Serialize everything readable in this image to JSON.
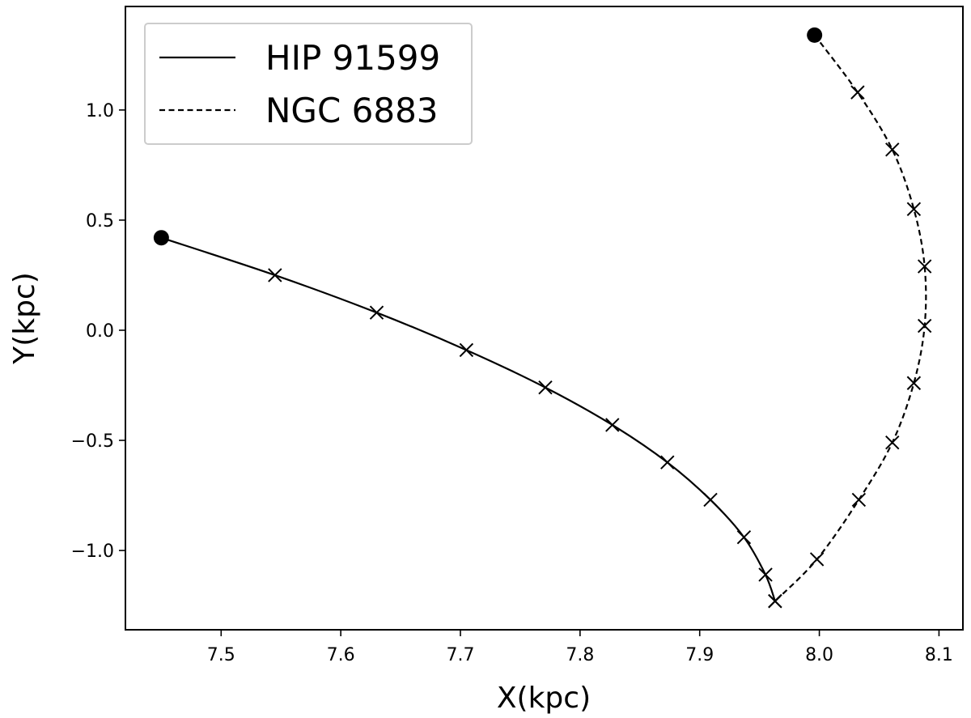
{
  "chart_data": {
    "type": "line",
    "title": "",
    "xlabel": "X(kpc)",
    "ylabel": "Y(kpc)",
    "xlim": [
      7.42,
      8.12
    ],
    "ylim": [
      -1.36,
      1.47
    ],
    "xticks": [
      7.5,
      7.6,
      7.7,
      7.8,
      7.9,
      8.0,
      8.1
    ],
    "xtick_labels": [
      "7.5",
      "7.6",
      "7.7",
      "7.8",
      "7.9",
      "8.0",
      "8.1"
    ],
    "yticks": [
      -1.0,
      -0.5,
      0.0,
      0.5,
      1.0
    ],
    "ytick_labels": [
      "−1.0",
      "−0.5",
      "0.0",
      "0.5",
      "1.0"
    ],
    "grid": false,
    "legend_position": "top-left",
    "series": [
      {
        "name": "HIP 91599",
        "linestyle": "solid",
        "color": "#000000",
        "start": [
          7.45,
          0.42
        ],
        "x": [
          7.45,
          7.545,
          7.63,
          7.705,
          7.771,
          7.827,
          7.873,
          7.909,
          7.937,
          7.955,
          7.963
        ],
        "y": [
          0.42,
          0.25,
          0.08,
          -0.09,
          -0.26,
          -0.43,
          -0.6,
          -0.77,
          -0.94,
          -1.11,
          -1.23
        ],
        "markers_x": [
          7.545,
          7.63,
          7.705,
          7.771,
          7.827,
          7.873,
          7.909,
          7.937,
          7.955,
          7.963
        ],
        "markers_y": [
          0.25,
          0.08,
          -0.09,
          -0.26,
          -0.43,
          -0.6,
          -0.77,
          -0.94,
          -1.11,
          -1.23
        ]
      },
      {
        "name": "NGC 6883",
        "linestyle": "dashed",
        "color": "#000000",
        "start": [
          7.996,
          1.34
        ],
        "x": [
          7.996,
          8.032,
          8.061,
          8.079,
          8.088,
          8.088,
          8.079,
          8.061,
          8.033,
          7.998,
          7.963
        ],
        "y": [
          1.34,
          1.08,
          0.82,
          0.55,
          0.29,
          0.02,
          -0.24,
          -0.51,
          -0.77,
          -1.04,
          -1.23
        ],
        "markers_x": [
          8.032,
          8.061,
          8.079,
          8.088,
          8.088,
          8.079,
          8.061,
          8.033,
          7.998,
          7.963
        ],
        "markers_y": [
          1.08,
          0.82,
          0.55,
          0.29,
          0.02,
          -0.24,
          -0.51,
          -0.77,
          -1.04,
          -1.23
        ]
      }
    ]
  }
}
